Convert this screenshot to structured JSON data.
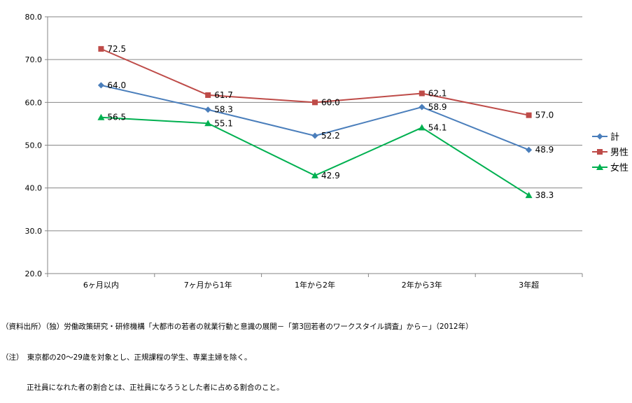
{
  "chart_data": {
    "type": "line",
    "categories": [
      "6ヶ月以内",
      "7ヶ月から1年",
      "1年から2年",
      "2年から3年",
      "3年超"
    ],
    "series": [
      {
        "name": "計",
        "values": [
          64.0,
          58.3,
          52.2,
          58.9,
          48.9
        ],
        "color": "#4a7ebb",
        "marker": "diamond"
      },
      {
        "name": "男性",
        "values": [
          72.5,
          61.7,
          60.0,
          62.1,
          57.0
        ],
        "color": "#be4b48",
        "marker": "square"
      },
      {
        "name": "女性",
        "values": [
          56.5,
          55.1,
          42.9,
          54.1,
          38.3
        ],
        "color": "#00b050",
        "marker": "triangle"
      }
    ],
    "ylim": [
      20.0,
      80.0
    ],
    "yticks": [
      "20.0",
      "30.0",
      "40.0",
      "50.0",
      "60.0",
      "70.0",
      "80.0"
    ],
    "grid": true,
    "legend": "right"
  },
  "notes": {
    "source": "（資料出所）（独）労働政策研究・研修機構「大都市の若者の就業行動と意識の展開－「第3回若者のワークスタイル調査」から－」（2012年）",
    "note1": "（注）　東京都の20～29歳を対象とし、正規課程の学生、専業主婦を除く。",
    "note2": "正社員になれた者の割合とは、正社員になろうとした者に占める割合のこと。"
  }
}
